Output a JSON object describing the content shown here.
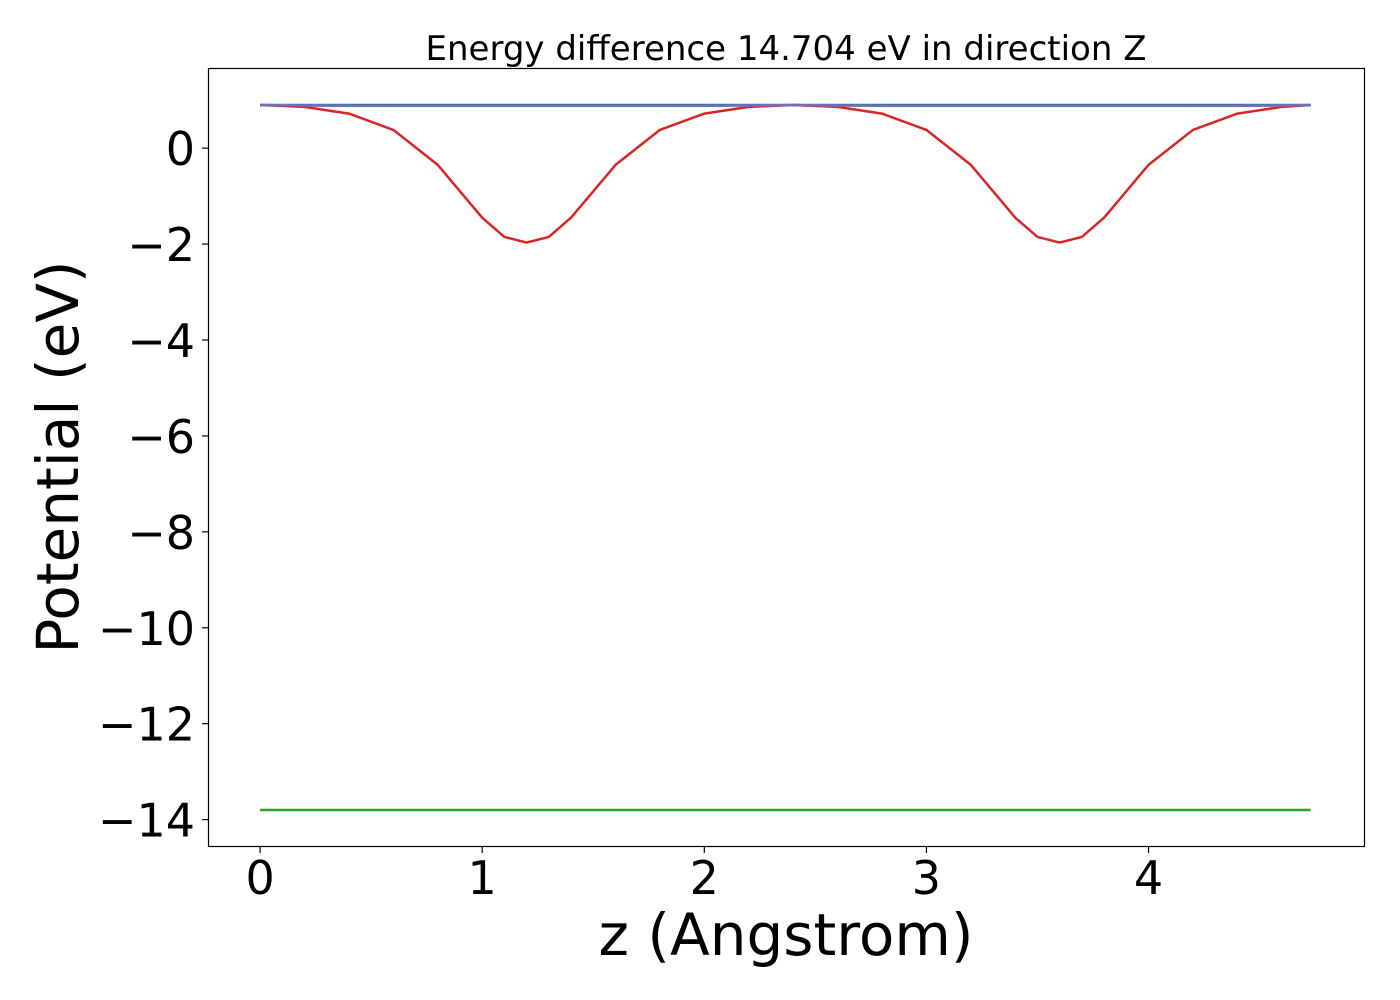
{
  "chart_data": {
    "type": "line",
    "title": "Energy difference 14.704 eV in direction Z",
    "xlabel": "z (Angstrom)",
    "ylabel": "Potential (eV)",
    "xlim": [
      -0.23,
      4.97
    ],
    "ylim": [
      -14.55,
      1.65
    ],
    "xticks": [
      0,
      1,
      2,
      3,
      4
    ],
    "yticks": [
      0,
      -2,
      -4,
      -6,
      -8,
      -10,
      -12,
      -14
    ],
    "xtick_labels": [
      "0",
      "1",
      "2",
      "3",
      "4"
    ],
    "ytick_labels": [
      "0",
      "−2",
      "−4",
      "−6",
      "−8",
      "−10",
      "−12",
      "−14"
    ],
    "grid": false,
    "series": [
      {
        "color": "#1f77b4",
        "x": [
          0,
          4.73
        ],
        "y": [
          0.9,
          0.9
        ]
      },
      {
        "color": "#2ca02c",
        "x": [
          0,
          4.73
        ],
        "y": [
          -13.8,
          -13.8
        ]
      },
      {
        "color": "#d62728",
        "x": [
          0,
          0.2,
          0.4,
          0.6,
          0.8,
          0.9,
          1.0,
          1.1,
          1.2,
          1.3,
          1.4,
          1.5,
          1.6,
          1.8,
          2.0,
          2.2,
          2.4,
          2.6,
          2.8,
          3.0,
          3.2,
          3.3,
          3.4,
          3.5,
          3.6,
          3.7,
          3.8,
          3.9,
          4.0,
          4.2,
          4.4,
          4.6,
          4.73
        ],
        "y": [
          0.9,
          0.86,
          0.72,
          0.38,
          -0.35,
          -0.9,
          -1.45,
          -1.85,
          -1.97,
          -1.85,
          -1.45,
          -0.9,
          -0.35,
          0.38,
          0.72,
          0.86,
          0.9,
          0.86,
          0.72,
          0.38,
          -0.35,
          -0.9,
          -1.45,
          -1.85,
          -1.97,
          -1.85,
          -1.45,
          -0.9,
          -0.35,
          0.38,
          0.72,
          0.86,
          0.9
        ]
      },
      {
        "color": "#7570b3",
        "x": [
          0,
          0.2,
          0.4,
          2.0,
          2.2,
          2.4,
          2.6,
          2.8,
          4.4,
          4.6,
          4.73
        ],
        "y": [
          0.9,
          0.89,
          0.88,
          0.88,
          0.89,
          0.9,
          0.89,
          0.88,
          0.88,
          0.89,
          0.9
        ]
      }
    ]
  }
}
